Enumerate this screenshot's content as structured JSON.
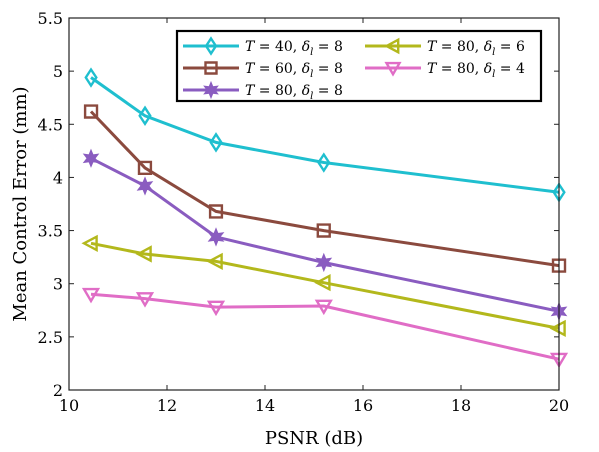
{
  "chart_data": {
    "type": "line",
    "title": "",
    "xlabel": "PSNR (dB)",
    "ylabel": "Mean Control Error (mm)",
    "xlim": [
      10,
      20
    ],
    "ylim": [
      2,
      5.5
    ],
    "xticks": [
      10,
      12,
      14,
      16,
      18,
      20
    ],
    "yticks": [
      2,
      2.5,
      3,
      3.5,
      4,
      4.5,
      5,
      5.5
    ],
    "grid": false,
    "legend_position": "top-right",
    "series": [
      {
        "name": "T = 40, δl = 8",
        "legend": {
          "T": "40",
          "d": "8"
        },
        "color": "#1fbfcf",
        "marker": "diamond",
        "x": [
          10.45,
          11.55,
          13.0,
          15.2,
          20.0
        ],
        "y": [
          4.94,
          4.58,
          4.33,
          4.14,
          3.86
        ]
      },
      {
        "name": "T = 60, δl = 8",
        "legend": {
          "T": "60",
          "d": "8"
        },
        "color": "#8b4a3e",
        "marker": "square",
        "x": [
          10.45,
          11.55,
          13.0,
          15.2,
          20.0
        ],
        "y": [
          4.62,
          4.09,
          3.68,
          3.5,
          3.17
        ]
      },
      {
        "name": "T = 80, δl = 8",
        "legend": {
          "T": "80",
          "d": "8"
        },
        "color": "#8a5cc0",
        "marker": "hexagram",
        "x": [
          10.45,
          11.55,
          13.0,
          15.2,
          20.0
        ],
        "y": [
          4.18,
          3.92,
          3.44,
          3.2,
          2.74
        ]
      },
      {
        "name": "T = 80, δl = 6",
        "legend": {
          "T": "80",
          "d": "6"
        },
        "color": "#b3b81c",
        "marker": "triangle-left",
        "x": [
          10.45,
          11.55,
          13.0,
          15.2,
          20.0
        ],
        "y": [
          3.38,
          3.28,
          3.21,
          3.01,
          2.58
        ]
      },
      {
        "name": "T = 80, δl = 4",
        "legend": {
          "T": "80",
          "d": "4"
        },
        "color": "#e06dc6",
        "marker": "triangle-down",
        "x": [
          10.45,
          11.55,
          13.0,
          15.2,
          20.0
        ],
        "y": [
          2.9,
          2.86,
          2.78,
          2.79,
          2.29
        ]
      }
    ]
  }
}
